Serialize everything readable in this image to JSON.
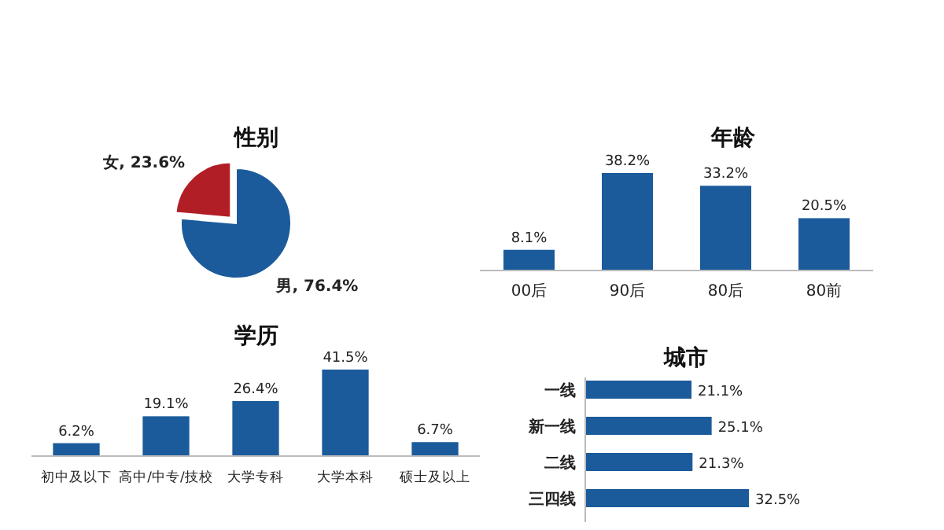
{
  "chart_data": [
    {
      "type": "pie",
      "title": "性别",
      "categories": [
        "男",
        "女"
      ],
      "values": [
        76.4,
        23.6
      ],
      "colors": [
        "#1b5b9b",
        "#b11e26"
      ],
      "value_labels": [
        "76.4%",
        "23.6%"
      ]
    },
    {
      "type": "bar",
      "title": "年龄",
      "categories": [
        "00后",
        "90后",
        "80后",
        "80前"
      ],
      "values": [
        8.1,
        38.2,
        33.2,
        20.5
      ],
      "color": "#1b5b9b",
      "value_labels": [
        "8.1%",
        "38.2%",
        "33.2%",
        "20.5%"
      ]
    },
    {
      "type": "bar",
      "title": "学历",
      "categories": [
        "初中及以下",
        "高中/中专/技校",
        "大学专科",
        "大学本科",
        "硕士及以上"
      ],
      "values": [
        6.2,
        19.1,
        26.4,
        41.5,
        6.7
      ],
      "color": "#1b5b9b",
      "value_labels": [
        "6.2%",
        "19.1%",
        "26.4%",
        "41.5%",
        "6.7%"
      ]
    },
    {
      "type": "bar",
      "orientation": "horizontal",
      "title": "城市",
      "categories": [
        "一线",
        "新一线",
        "二线",
        "三四线"
      ],
      "values": [
        21.1,
        25.1,
        21.3,
        32.5
      ],
      "color": "#1b5b9b",
      "value_labels": [
        "21.1%",
        "25.1%",
        "21.3%",
        "32.5%"
      ]
    }
  ]
}
